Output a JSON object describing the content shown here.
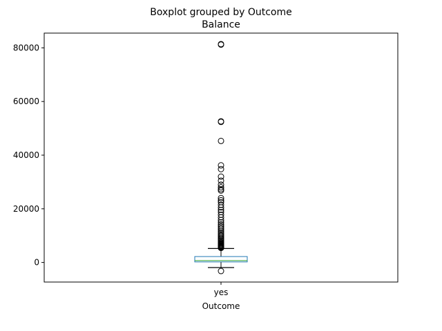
{
  "chart_data": {
    "type": "boxplot",
    "title": "Boxplot grouped by Outcome",
    "subtitle": "Balance",
    "xlabel": "Outcome",
    "ylabel": "",
    "categories": [
      "yes"
    ],
    "ylim": [
      -7300,
      85500
    ],
    "yticks": [
      0,
      20000,
      40000,
      60000,
      80000
    ],
    "grid": false,
    "colors": {
      "box": "#1f77b4",
      "median": "#2ca02c",
      "whisker": "#000000",
      "flier": "#000000"
    },
    "boxes": [
      {
        "category": "yes",
        "whisker_low": -1900,
        "q1": 200,
        "median": 700,
        "q3": 2200,
        "whisker_high": 5200,
        "fliers": [
          -3200,
          5400,
          5600,
          5800,
          6000,
          6200,
          6500,
          6800,
          7100,
          7400,
          7800,
          8200,
          8600,
          9000,
          9500,
          10000,
          10500,
          11000,
          11600,
          12200,
          12800,
          13500,
          14200,
          15000,
          15800,
          16800,
          17800,
          18800,
          19600,
          20500,
          21500,
          22500,
          23200,
          24000,
          26800,
          27300,
          28000,
          29000,
          30500,
          32000,
          34800,
          36200,
          45300,
          52400,
          52600,
          81200,
          81400
        ]
      }
    ]
  }
}
